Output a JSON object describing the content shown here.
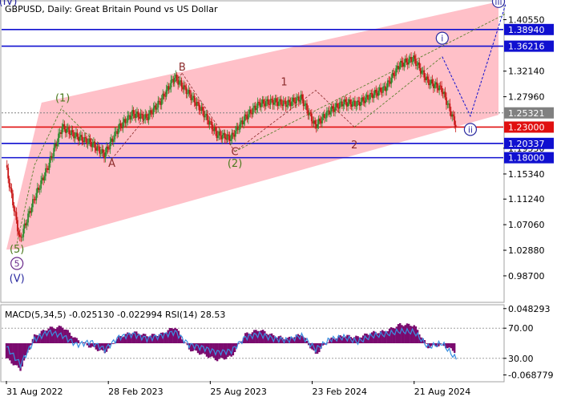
{
  "chart_data": {
    "type": "candlestick",
    "title": "GBPUSD, Daily:  Great Britain Pound vs US Dollar",
    "price_axis": {
      "ylim": [
        0.945,
        1.435
      ],
      "ticks": [
        "1.40550",
        "1.32140",
        "1.27960",
        "1.19550",
        "1.15340",
        "1.11240",
        "1.07060",
        "1.02880",
        "0.98700"
      ]
    },
    "price_series": {
      "x_index": [
        0,
        4,
        8,
        12,
        16,
        20,
        24,
        28,
        32,
        36,
        40,
        44,
        48,
        52,
        56,
        60,
        64,
        68,
        72,
        76,
        80,
        84,
        88,
        92,
        96,
        100,
        104,
        108,
        112,
        116,
        120,
        124,
        128
      ],
      "close": [
        1.168,
        1.045,
        1.112,
        1.166,
        1.23,
        1.215,
        1.205,
        1.185,
        1.228,
        1.252,
        1.245,
        1.272,
        1.312,
        1.285,
        1.255,
        1.218,
        1.212,
        1.245,
        1.268,
        1.272,
        1.268,
        1.278,
        1.232,
        1.256,
        1.27,
        1.268,
        1.282,
        1.294,
        1.332,
        1.342,
        1.305,
        1.292,
        1.233
      ],
      "x_max": 140
    },
    "horizontal_levels": [
      {
        "value": 1.3894,
        "label": "1.38940",
        "color": "#1010d0"
      },
      {
        "value": 1.36216,
        "label": "1.36216",
        "color": "#1010d0"
      },
      {
        "value": 1.25321,
        "label": "1.25321",
        "color": "#808080"
      },
      {
        "value": 1.23,
        "label": "1.23000",
        "color": "#e01010"
      },
      {
        "value": 1.20337,
        "label": "1.20337",
        "color": "#1010d0"
      },
      {
        "value": 1.18,
        "label": "1.18000",
        "color": "#1010d0"
      }
    ],
    "wave_labels": [
      {
        "text": "(1)",
        "x_index": 16,
        "price": 1.272,
        "style": "green"
      },
      {
        "text": "A",
        "x_index": 30,
        "price": 1.165,
        "style": "red"
      },
      {
        "text": "B",
        "x_index": 50,
        "price": 1.322,
        "style": "red"
      },
      {
        "text": "C",
        "x_index": 65,
        "price": 1.184,
        "style": "red"
      },
      {
        "text": "(2)",
        "x_index": 65,
        "price": 1.165,
        "style": "green"
      },
      {
        "text": "1",
        "x_index": 79,
        "price": 1.298,
        "style": "red"
      },
      {
        "text": "2",
        "x_index": 99,
        "price": 1.195,
        "style": "red"
      },
      {
        "text": "i",
        "x_index": 124,
        "price": 1.37,
        "style": "circled"
      },
      {
        "text": "ii",
        "x_index": 132,
        "price": 1.221,
        "style": "circled"
      },
      {
        "text": "iii",
        "x_index": 142,
        "price": 1.43,
        "style": "circled"
      },
      {
        "text": "(5)",
        "x_index": 3,
        "price": 1.025,
        "style": "green"
      },
      {
        "text": "5",
        "x_index": 3,
        "price": 1.002,
        "style": "circled-purple"
      },
      {
        "text": "(V)",
        "x_index": 3,
        "price": 0.977,
        "style": "blue"
      },
      {
        "text": "(IV)",
        "x_index": 0,
        "price": 1.43,
        "style": "blue"
      }
    ],
    "channel": {
      "points": [
        [
          0,
          1.03
        ],
        [
          10,
          1.27
        ],
        [
          140,
          1.435
        ],
        [
          140,
          1.25
        ],
        [
          3,
          1.03
        ]
      ],
      "color": "#ffc0c8"
    },
    "projection": [
      [
        124,
        1.345
      ],
      [
        132,
        1.248
      ],
      [
        142,
        1.43
      ]
    ],
    "wave_paths": [
      {
        "points": [
          [
            3,
            1.04
          ],
          [
            8,
            1.168
          ],
          [
            16,
            1.265
          ]
        ],
        "color": "#4c7a1e"
      },
      {
        "points": [
          [
            16,
            1.258
          ],
          [
            30,
            1.178
          ]
        ],
        "color": "#4c7a1e"
      },
      {
        "points": [
          [
            30,
            1.178
          ],
          [
            50,
            1.318
          ]
        ],
        "color": "#8b2a2a"
      },
      {
        "points": [
          [
            50,
            1.318
          ],
          [
            65,
            1.19
          ]
        ],
        "color": "#8b2a2a"
      },
      {
        "points": [
          [
            65,
            1.19
          ],
          [
            88,
            1.29
          ],
          [
            99,
            1.23
          ]
        ],
        "color": "#8b2a2a"
      },
      {
        "points": [
          [
            99,
            1.23
          ],
          [
            124,
            1.345
          ]
        ],
        "color": "#4c7a1e"
      },
      {
        "points": [
          [
            65,
            1.19
          ],
          [
            142,
            1.415
          ]
        ],
        "color": "#4c7a1e"
      }
    ],
    "indicator": {
      "label": "MACD(5,34,5) -0.025130 -0.022994 RSI(14) 28.53",
      "scale_ticks": [
        "0.048293",
        "70.00",
        "30.00",
        "-0.068779"
      ],
      "ylim": [
        0,
        100
      ],
      "rsi_x_index": [
        0,
        4,
        8,
        12,
        16,
        20,
        24,
        28,
        32,
        36,
        40,
        44,
        48,
        52,
        56,
        60,
        64,
        68,
        72,
        76,
        80,
        84,
        88,
        92,
        96,
        100,
        104,
        108,
        112,
        116,
        120,
        124,
        128
      ],
      "rsi": [
        45,
        22,
        55,
        65,
        60,
        48,
        52,
        42,
        58,
        62,
        56,
        60,
        65,
        48,
        44,
        38,
        40,
        58,
        62,
        56,
        54,
        60,
        42,
        55,
        58,
        52,
        60,
        62,
        66,
        65,
        45,
        50,
        28.53
      ],
      "macd_hist": [
        -20,
        -35,
        10,
        20,
        22,
        5,
        -5,
        -12,
        8,
        15,
        10,
        12,
        22,
        -8,
        -15,
        -22,
        -18,
        12,
        18,
        10,
        6,
        12,
        -15,
        5,
        10,
        8,
        14,
        16,
        25,
        24,
        -5,
        -2,
        -12
      ],
      "levels": [
        70,
        30
      ]
    },
    "x_axis": {
      "labels": [
        {
          "text": "31 Aug 2022",
          "x_index": 0
        },
        {
          "text": "28 Feb 2023",
          "x_index": 29
        },
        {
          "text": "25 Aug 2023",
          "x_index": 58
        },
        {
          "text": "23 Feb 2024",
          "x_index": 87
        },
        {
          "text": "21 Aug 2024",
          "x_index": 116
        }
      ]
    },
    "colors": {
      "bull": "#2e8b2e",
      "bear": "#c81414",
      "rsi": "#3a8fe0",
      "hist": "#7a0a6e"
    }
  }
}
